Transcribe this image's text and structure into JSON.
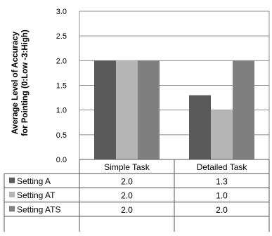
{
  "chart_data": {
    "type": "bar",
    "title": "",
    "ylabel": [
      "Average Level of Accuracy",
      "for Pointing (0:Low -3:High)"
    ],
    "xlabel": "",
    "ylim": [
      0,
      3.0
    ],
    "yticks": [
      "0.0",
      "0.5",
      "1.0",
      "1.5",
      "2.0",
      "2.5",
      "3.0"
    ],
    "grid": true,
    "legend": "table-below",
    "categories": [
      "Simple Task",
      "Detailed Task"
    ],
    "series": [
      {
        "name": "Setting A",
        "values": [
          2.0,
          1.3
        ],
        "labels": [
          "2.0",
          "1.3"
        ],
        "color": "#5a5a5a"
      },
      {
        "name": "Setting AT",
        "values": [
          2.0,
          1.0
        ],
        "labels": [
          "2.0",
          "1.0"
        ],
        "color": "#b5b5b5"
      },
      {
        "name": "Setting ATS",
        "values": [
          2.0,
          2.0
        ],
        "labels": [
          "2.0",
          "2.0"
        ],
        "color": "#7f7f7f"
      }
    ]
  }
}
